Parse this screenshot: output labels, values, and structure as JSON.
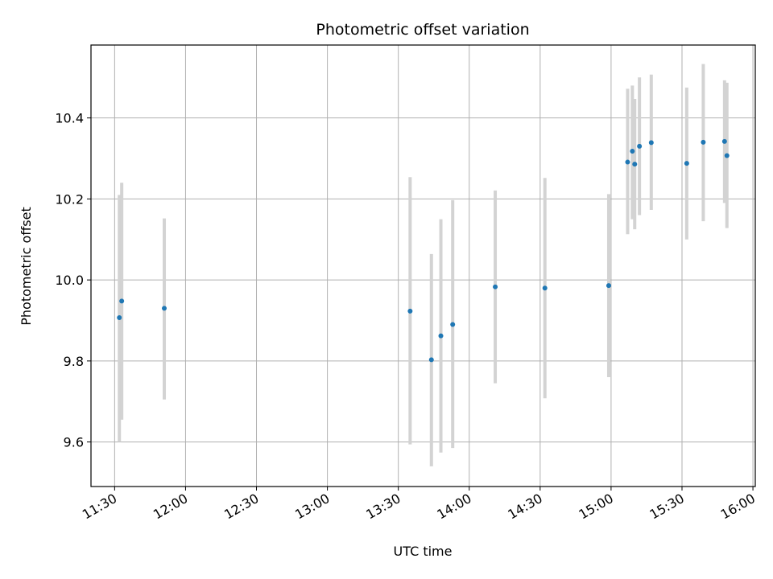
{
  "chart_data": {
    "type": "scatter",
    "title": "Photometric offset variation",
    "xlabel": "UTC time",
    "ylabel": "Photometric offset",
    "x_ticks": [
      "11:30",
      "12:00",
      "12:30",
      "13:00",
      "13:30",
      "14:00",
      "14:30",
      "15:00",
      "15:30",
      "16:00"
    ],
    "x_tick_minutes": [
      690,
      720,
      750,
      780,
      810,
      840,
      870,
      900,
      930,
      960
    ],
    "y_ticks": [
      "9.6",
      "9.8",
      "10.0",
      "10.2",
      "10.4"
    ],
    "y_tick_values": [
      9.6,
      9.8,
      10.0,
      10.2,
      10.4
    ],
    "xlim": [
      "11:20",
      "16:01"
    ],
    "ylim": [
      9.49,
      10.58
    ],
    "grid": true,
    "marker_color": "#1f77b4",
    "errorbar_color": "#d3d3d3",
    "points": [
      {
        "time": "11:32",
        "y": 9.907,
        "low": 9.6,
        "high": 10.21
      },
      {
        "time": "11:33",
        "y": 9.948,
        "low": 9.655,
        "high": 10.24
      },
      {
        "time": "11:51",
        "y": 9.93,
        "low": 9.705,
        "high": 10.152
      },
      {
        "time": "13:35",
        "y": 9.923,
        "low": 9.594,
        "high": 10.254
      },
      {
        "time": "13:44",
        "y": 9.803,
        "low": 9.54,
        "high": 10.064
      },
      {
        "time": "13:48",
        "y": 9.862,
        "low": 9.574,
        "high": 10.15
      },
      {
        "time": "13:53",
        "y": 9.89,
        "low": 9.585,
        "high": 10.197
      },
      {
        "time": "14:11",
        "y": 9.983,
        "low": 9.745,
        "high": 10.221
      },
      {
        "time": "14:32",
        "y": 9.98,
        "low": 9.708,
        "high": 10.252
      },
      {
        "time": "14:59",
        "y": 9.986,
        "low": 9.76,
        "high": 10.212
      },
      {
        "time": "15:07",
        "y": 10.291,
        "low": 10.113,
        "high": 10.472
      },
      {
        "time": "15:09",
        "y": 10.318,
        "low": 10.15,
        "high": 10.48
      },
      {
        "time": "15:10",
        "y": 10.286,
        "low": 10.125,
        "high": 10.447
      },
      {
        "time": "15:12",
        "y": 10.33,
        "low": 10.16,
        "high": 10.5
      },
      {
        "time": "15:17",
        "y": 10.339,
        "low": 10.173,
        "high": 10.507
      },
      {
        "time": "15:32",
        "y": 10.288,
        "low": 10.1,
        "high": 10.475
      },
      {
        "time": "15:39",
        "y": 10.34,
        "low": 10.145,
        "high": 10.533
      },
      {
        "time": "15:48",
        "y": 10.342,
        "low": 10.19,
        "high": 10.493
      },
      {
        "time": "15:49",
        "y": 10.307,
        "low": 10.128,
        "high": 10.487
      }
    ]
  }
}
